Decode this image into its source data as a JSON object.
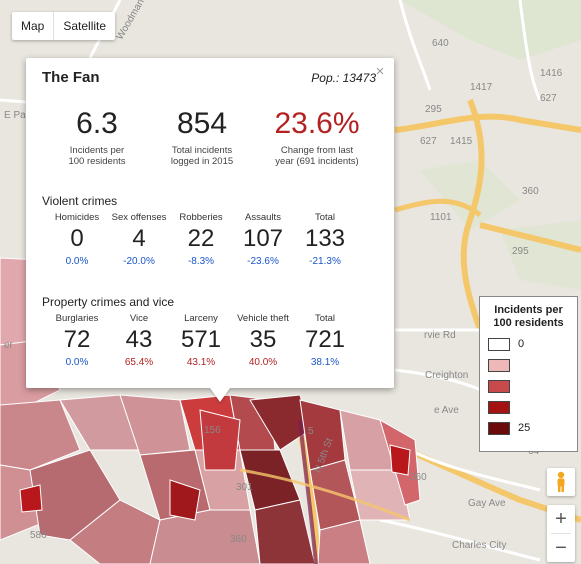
{
  "map_type": {
    "map_label": "Map",
    "satellite_label": "Satellite"
  },
  "info": {
    "neighborhood": "The Fan",
    "population": "Pop.: 13473",
    "close_icon": "×",
    "summary": [
      {
        "value": "6.3",
        "label": [
          "Incidents per",
          "100 residents"
        ]
      },
      {
        "value": "854",
        "label": [
          "Total incidents",
          "logged in 2015"
        ]
      },
      {
        "value": "23.6%",
        "label": [
          "Change from last",
          "year (691 incidents)"
        ]
      }
    ],
    "violent": {
      "title": "Violent crimes",
      "cols": [
        {
          "h": "Homicides",
          "v": "0",
          "p": "0.0%"
        },
        {
          "h": "Sex offenses",
          "v": "4",
          "p": "-20.0%"
        },
        {
          "h": "Robberies",
          "v": "22",
          "p": "-8.3%"
        },
        {
          "h": "Assaults",
          "v": "107",
          "p": "-23.6%"
        },
        {
          "h": "Total",
          "v": "133",
          "p": "-21.3%"
        }
      ]
    },
    "property": {
      "title": "Property crimes and vice",
      "cols": [
        {
          "h": "Burglaries",
          "v": "72",
          "p": "0.0%"
        },
        {
          "h": "Vice",
          "v": "43",
          "p": "65.4%"
        },
        {
          "h": "Larceny",
          "v": "571",
          "p": "43.1%"
        },
        {
          "h": "Vehicle theft",
          "v": "35",
          "p": "40.0%"
        },
        {
          "h": "Total",
          "v": "721",
          "p": "38.1%"
        }
      ]
    }
  },
  "legend": {
    "title": "Incidents per 100 residents",
    "items": [
      {
        "label": "0",
        "color": "#ffffff"
      },
      {
        "label": "",
        "color": "#efb8b8"
      },
      {
        "label": "",
        "color": "#c94a4a"
      },
      {
        "label": "",
        "color": "#a51212"
      },
      {
        "label": "25",
        "color": "#6b0a0a"
      }
    ]
  },
  "road_labels": [
    "640",
    "1417",
    "627",
    "1416",
    "295",
    "627",
    "1415",
    "360",
    "1101",
    "295",
    "E Pa",
    "Woodman",
    "rvie Rd",
    "Creighton",
    "e Ave",
    "Gay Ave",
    "Charles City",
    "360",
    "64",
    "5",
    "156",
    "301",
    "360",
    "586",
    "N 5th St",
    "er"
  ],
  "zoom": {
    "in": "+",
    "out": "−"
  },
  "colors": {
    "accent_red": "#b22222",
    "accent_blue": "#1a56c8"
  }
}
